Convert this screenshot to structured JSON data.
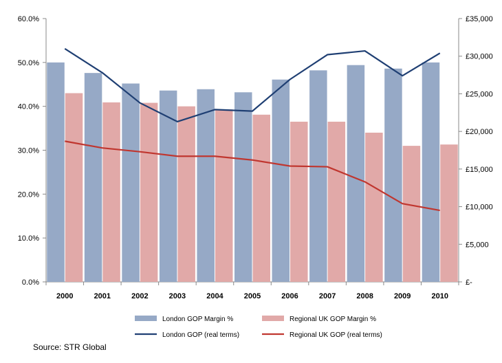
{
  "chart_data": {
    "type": "bar",
    "categories": [
      "2000",
      "2001",
      "2002",
      "2003",
      "2004",
      "2005",
      "2006",
      "2007",
      "2008",
      "2009",
      "2010"
    ],
    "y_left": {
      "ylim": [
        0,
        60
      ],
      "ticks": [
        "0.0%",
        "10.0%",
        "20.0%",
        "30.0%",
        "40.0%",
        "50.0%",
        "60.0%"
      ]
    },
    "y_right": {
      "ylim": [
        0,
        35000
      ],
      "ticks": [
        "£-",
        "£5,000",
        "£10,000",
        "£15,000",
        "£20,000",
        "£25,000",
        "£30,000",
        "£35,000"
      ]
    },
    "series": [
      {
        "name": "London GOP Margin %",
        "type": "bar",
        "axis": "left",
        "color": "#96a9c6",
        "values": [
          50.0,
          47.6,
          45.2,
          43.6,
          43.9,
          43.2,
          46.1,
          48.2,
          49.4,
          48.6,
          50.0
        ]
      },
      {
        "name": "Regional UK GOP Margin %",
        "type": "bar",
        "axis": "left",
        "color": "#e1a9a8",
        "values": [
          43.0,
          40.9,
          40.8,
          40.0,
          39.3,
          38.1,
          36.5,
          36.5,
          34.0,
          31.0,
          31.3
        ]
      },
      {
        "name": "London GOP (real terms)",
        "type": "line",
        "axis": "right",
        "color": "#1f3f73",
        "values": [
          31000,
          27800,
          23800,
          21300,
          22900,
          22700,
          26900,
          30200,
          30700,
          27400,
          30400
        ]
      },
      {
        "name": "Regional UK GOP (real terms)",
        "type": "line",
        "axis": "right",
        "color": "#c0362f",
        "values": [
          18700,
          17800,
          17300,
          16700,
          16700,
          16200,
          15400,
          15300,
          13300,
          10400,
          9500
        ]
      }
    ],
    "grid": false,
    "legend_position": "bottom"
  },
  "source": "Source: STR Global"
}
